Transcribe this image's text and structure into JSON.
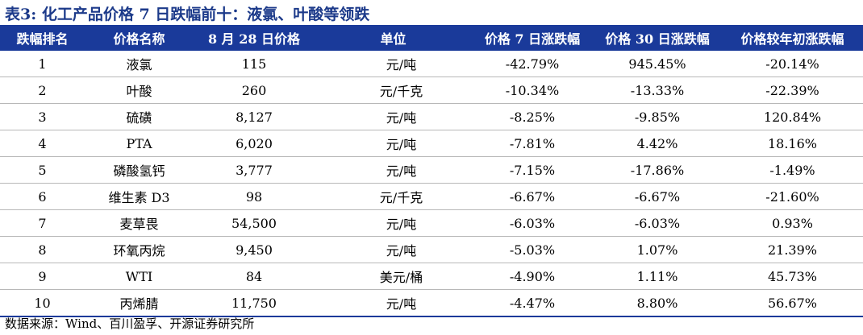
{
  "title": "表3:  化工产品价格 7 日跌幅前十：液氯、叶酸等领跌",
  "table": {
    "headers": [
      "跌幅排名",
      "价格名称",
      "8 月 28 日价格",
      "单位",
      "价格 7 日涨跌幅",
      "价格 30 日涨跌幅",
      "价格较年初涨跌幅"
    ],
    "rows": [
      [
        "1",
        "液氯",
        "115",
        "元/吨",
        "-42.79%",
        "945.45%",
        "-20.14%"
      ],
      [
        "2",
        "叶酸",
        "260",
        "元/千克",
        "-10.34%",
        "-13.33%",
        "-22.39%"
      ],
      [
        "3",
        "硫磺",
        "8,127",
        "元/吨",
        "-8.25%",
        "-9.85%",
        "120.84%"
      ],
      [
        "4",
        "PTA",
        "6,020",
        "元/吨",
        "-7.81%",
        "4.42%",
        "18.16%"
      ],
      [
        "5",
        "磷酸氢钙",
        "3,777",
        "元/吨",
        "-7.15%",
        "-17.86%",
        "-1.49%"
      ],
      [
        "6",
        "维生素 D3",
        "98",
        "元/千克",
        "-6.67%",
        "-6.67%",
        "-21.60%"
      ],
      [
        "7",
        "麦草畏",
        "54,500",
        "元/吨",
        "-6.03%",
        "-6.03%",
        "0.93%"
      ],
      [
        "8",
        "环氧丙烷",
        "9,450",
        "元/吨",
        "-5.03%",
        "1.07%",
        "21.39%"
      ],
      [
        "9",
        "WTI",
        "84",
        "美元/桶",
        "-4.90%",
        "1.11%",
        "45.73%"
      ],
      [
        "10",
        "丙烯腈",
        "11,750",
        "元/吨",
        "-4.47%",
        "8.80%",
        "56.67%"
      ]
    ]
  },
  "source": "数据来源：Wind、百川盈孚、开源证券研究所",
  "colors": {
    "header_bg": "#1a3a9a",
    "title": "#1c3a8a"
  }
}
